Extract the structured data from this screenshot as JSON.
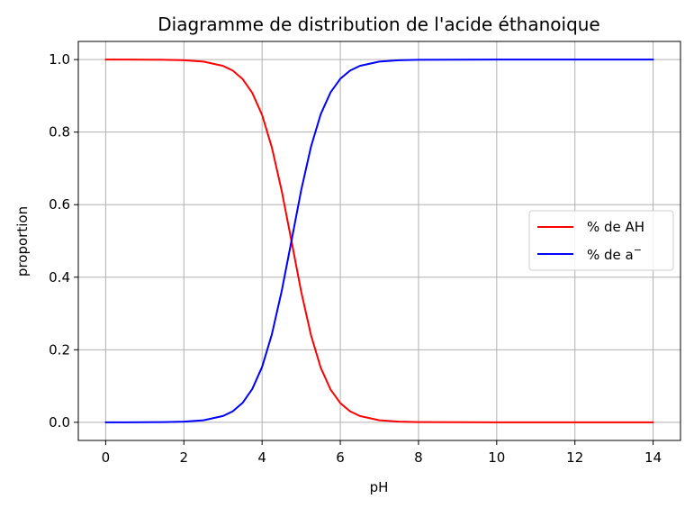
{
  "chart_data": {
    "type": "line",
    "title": "Diagramme de distribution de l'acide éthanoique",
    "xlabel": "pH",
    "ylabel": "proportion",
    "xlim": [
      -0.7,
      14.7
    ],
    "ylim": [
      -0.05,
      1.05
    ],
    "xticks": [
      0,
      2,
      4,
      6,
      8,
      10,
      12,
      14
    ],
    "xtick_labels": [
      "0",
      "2",
      "4",
      "6",
      "8",
      "10",
      "12",
      "14"
    ],
    "yticks": [
      0.0,
      0.2,
      0.4,
      0.6,
      0.8,
      1.0
    ],
    "ytick_labels": [
      "0.0",
      "0.2",
      "0.4",
      "0.6",
      "0.8",
      "1.0"
    ],
    "grid": true,
    "legend_position": "center-right",
    "x": [
      0,
      0.5,
      1,
      1.5,
      2,
      2.5,
      3,
      3.25,
      3.5,
      3.75,
      4,
      4.25,
      4.5,
      4.75,
      5,
      5.25,
      5.5,
      5.75,
      6,
      6.25,
      6.5,
      7,
      7.5,
      8,
      9,
      10,
      11,
      12,
      13,
      14
    ],
    "series": [
      {
        "name": "% de AH",
        "color": "#ff0000",
        "values": [
          1.0,
          1.0,
          0.9998,
          0.9994,
          0.9982,
          0.9944,
          0.9828,
          0.9695,
          0.9465,
          0.9079,
          0.8472,
          0.7577,
          0.6387,
          0.5,
          0.3602,
          0.2402,
          0.1507,
          0.0905,
          0.0528,
          0.0305,
          0.0173,
          0.0055,
          0.0018,
          0.0006,
          0.0001,
          0.0,
          0.0,
          0.0,
          0.0,
          0.0
        ]
      },
      {
        "name": "% de a⁻",
        "legend_base": "% de a",
        "legend_sup": "−",
        "color": "#0000ff",
        "values": [
          0.0,
          0.0,
          0.0002,
          0.0006,
          0.0018,
          0.0056,
          0.0172,
          0.0305,
          0.0535,
          0.0921,
          0.1528,
          0.2423,
          0.3613,
          0.5,
          0.6398,
          0.7598,
          0.8493,
          0.9095,
          0.9472,
          0.9695,
          0.9827,
          0.9945,
          0.9982,
          0.9994,
          0.9999,
          1.0,
          1.0,
          1.0,
          1.0,
          1.0
        ]
      }
    ]
  }
}
